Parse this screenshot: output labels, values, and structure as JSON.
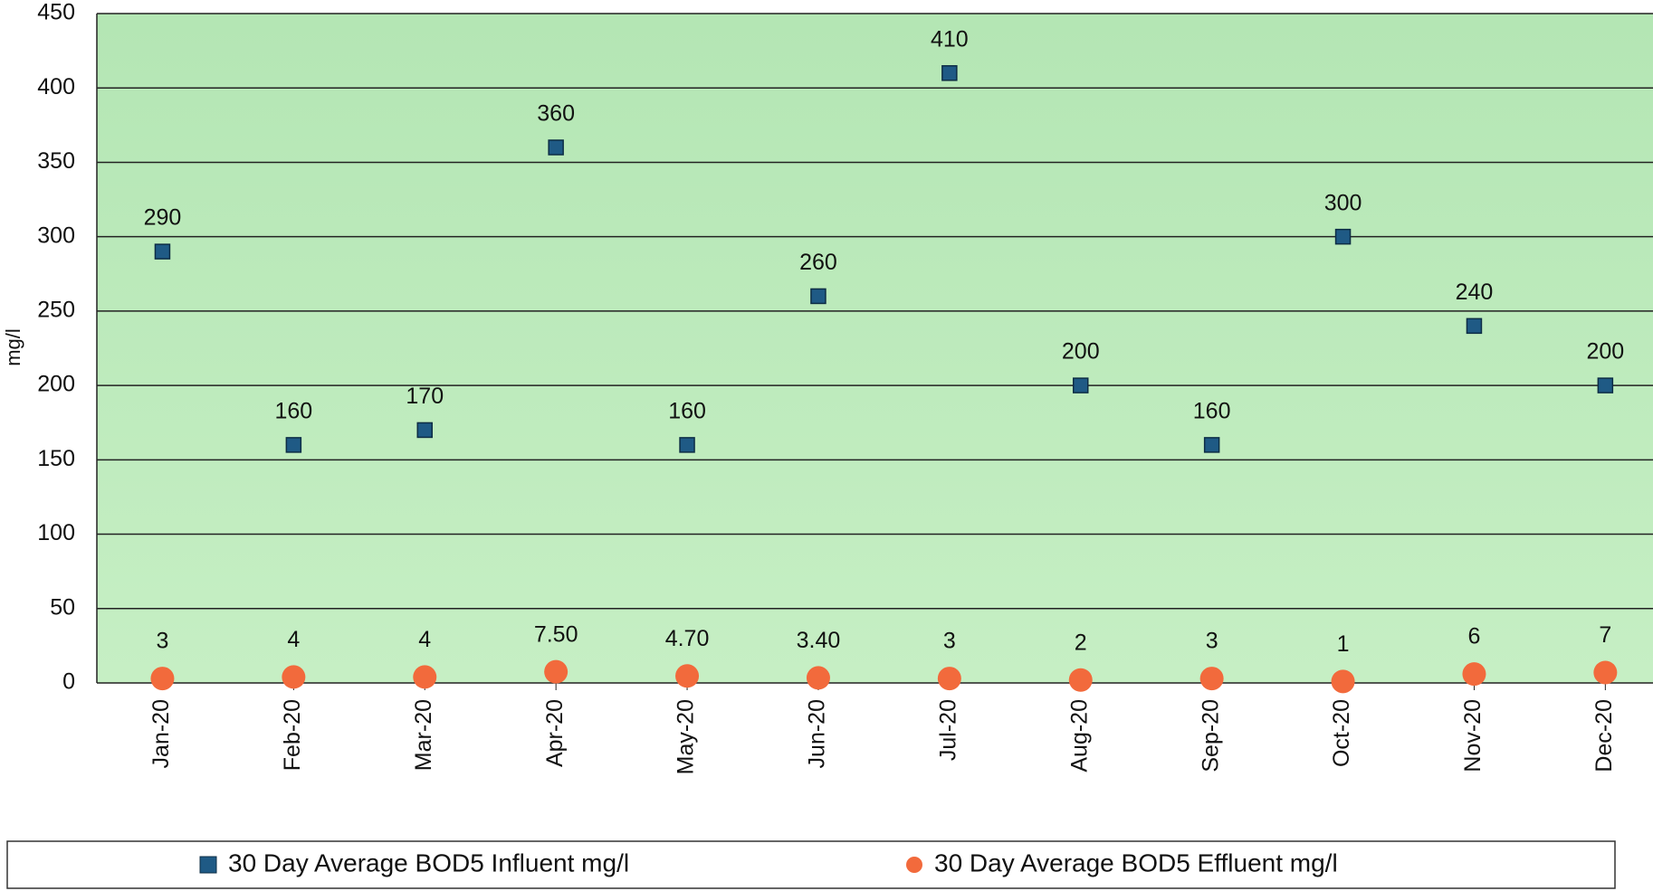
{
  "chart_data": {
    "type": "scatter",
    "y_label": "mg/l",
    "categories": [
      "Jan-20",
      "Feb-20",
      "Mar-20",
      "Apr-20",
      "May-20",
      "Jun-20",
      "Jul-20",
      "Aug-20",
      "Sep-20",
      "Oct-20",
      "Nov-20",
      "Dec-20"
    ],
    "series": [
      {
        "name": "30 Day Average BOD5 Influent mg/l",
        "color": "#1f5a85",
        "marker": "square",
        "values": [
          290,
          160,
          170,
          360,
          160,
          260,
          410,
          200,
          160,
          300,
          240,
          200
        ]
      },
      {
        "name": "30 Day Average BOD5 Effluent mg/l",
        "color": "#f26a3c",
        "marker": "circle",
        "values": [
          3,
          4,
          4,
          7.5,
          4.7,
          3.4,
          3,
          2,
          3,
          1,
          6,
          7
        ],
        "value_labels": [
          "3",
          "4",
          "4",
          "7.50",
          "4.70",
          "3.40",
          "3",
          "2",
          "3",
          "1",
          "6",
          "7"
        ]
      }
    ],
    "ylim": [
      0,
      450
    ],
    "yticks": [
      0,
      50,
      100,
      150,
      200,
      250,
      300,
      350,
      400,
      450
    ],
    "grid": true,
    "legend": "bottom"
  }
}
